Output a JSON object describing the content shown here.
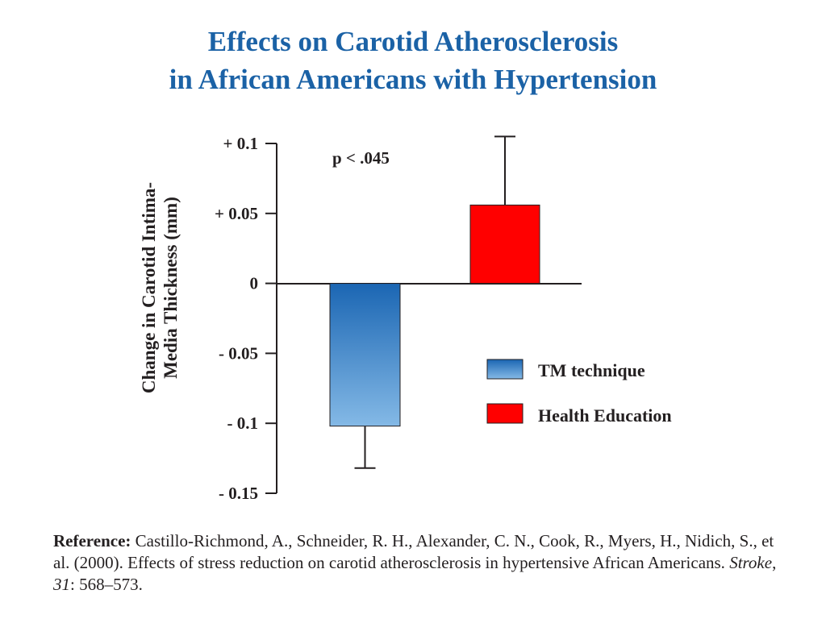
{
  "colors": {
    "title": "#1b62a6",
    "text": "#231f20",
    "tm_top": "#1b66b3",
    "tm_bottom": "#84b9e6",
    "he_fill": "#ff0000"
  },
  "title_lines": [
    "Effects on Carotid Atherosclerosis",
    "in African Americans with Hypertension"
  ],
  "chart_data": {
    "type": "bar",
    "title": "Effects on Carotid Atherosclerosis in African Americans with Hypertension",
    "ylabel_lines": [
      "Change in Carotid Intima-",
      "Media Thickness (mm)"
    ],
    "xlabel": "",
    "ylim": [
      -0.15,
      0.1
    ],
    "y_ticks": [
      0.1,
      0.05,
      0,
      -0.05,
      -0.1,
      -0.15
    ],
    "y_tick_labels": [
      "+ 0.1",
      "+ 0.05",
      "0",
      "- 0.05",
      "- 0.1",
      "- 0.15"
    ],
    "series": [
      {
        "name": "TM technique",
        "value": -0.102,
        "error_low": -0.132
      },
      {
        "name": "Health Education",
        "value": 0.056,
        "error_high": 0.105
      }
    ],
    "annotation": "p < .045",
    "legend": [
      "TM technique",
      "Health Education"
    ],
    "legend_position": "right"
  },
  "reference": {
    "label": "Reference:",
    "text_before": " Castillo-Richmond, A., Schneider, R. H., Alexander, C. N., Cook, R., Myers, H., Nidich, S., et al. (2000). Effects of stress reduction on carotid atherosclerosis in hypertensive African Americans. ",
    "journal": "Stroke",
    "sep": ", ",
    "volume": "31",
    "pages": ": 568–573."
  }
}
